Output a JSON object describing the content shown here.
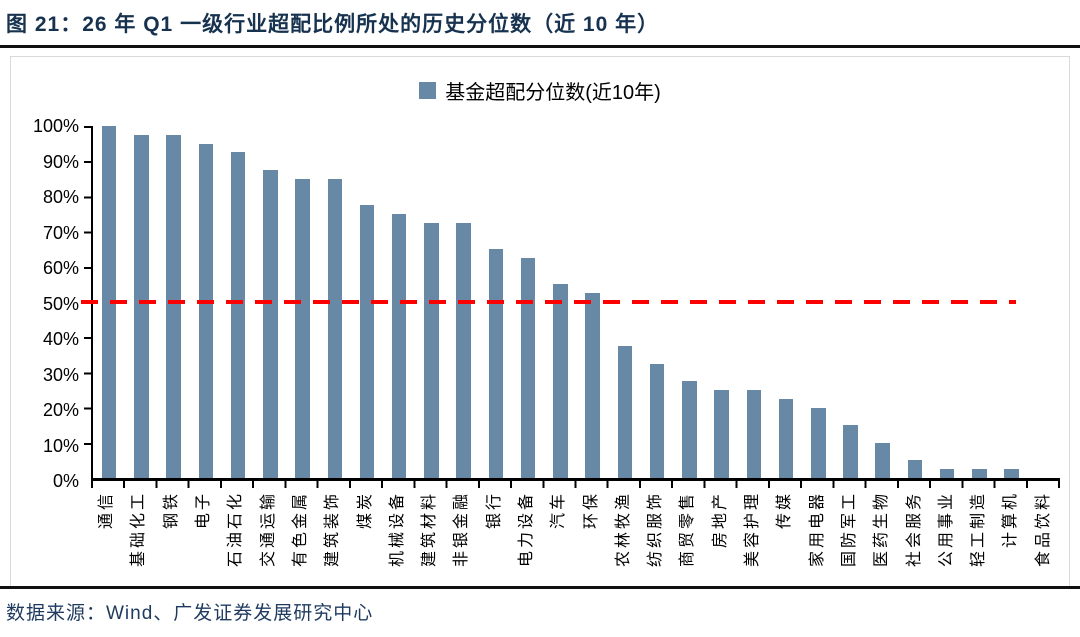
{
  "figure": {
    "title": "图 21：26 年 Q1 一级行业超配比例所处的历史分位数（近 10 年）",
    "source": "数据来源：Wind、广发证券发展研究中心"
  },
  "chart_data": {
    "type": "bar",
    "legend": "基金超配分位数(近10年)",
    "legend_position": "top-center",
    "categories": [
      "通信",
      "基础化工",
      "钢铁",
      "电子",
      "石油石化",
      "交通运输",
      "有色金属",
      "建筑装饰",
      "煤炭",
      "机械设备",
      "建筑材料",
      "非银金融",
      "银行",
      "电力设备",
      "汽车",
      "环保",
      "农林牧渔",
      "纺织服饰",
      "商贸零售",
      "房地产",
      "美容护理",
      "传媒",
      "家用电器",
      "国防军工",
      "医药生物",
      "社会服务",
      "公用事业",
      "轻工制造",
      "计算机",
      "食品饮料"
    ],
    "values": [
      100,
      97.5,
      97.5,
      95,
      92.5,
      87.5,
      85,
      85,
      77.5,
      75,
      72.5,
      72.5,
      65,
      62.5,
      55,
      52.5,
      37.5,
      32.5,
      27.5,
      25,
      25,
      22.5,
      20,
      15,
      10,
      5,
      2.5,
      2.5,
      2.5,
      0
    ],
    "value_unit": "%",
    "ylim": [
      0,
      100
    ],
    "y_ticks": [
      "100%",
      "90%",
      "80%",
      "70%",
      "60%",
      "50%",
      "40%",
      "30%",
      "20%",
      "10%",
      "0%"
    ],
    "reference_line": {
      "value": 50,
      "label": "50%",
      "color": "#FF0000",
      "style": "dashed"
    },
    "bar_color": "#6889A6",
    "grid": false,
    "xlabel": "",
    "ylabel": ""
  }
}
